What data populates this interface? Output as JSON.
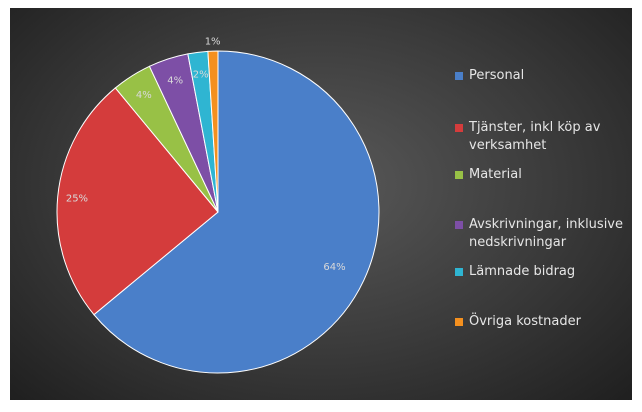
{
  "chart_data": {
    "type": "pie",
    "categories": [
      "Personal",
      "Tjänster, inkl köp av verksamhet",
      "Material",
      "Avskrivningar, inklusive nedskrivningar",
      "Lämnade bidrag",
      "Övriga kostnader"
    ],
    "values": [
      64,
      25,
      4,
      4,
      2,
      1
    ],
    "value_labels": [
      "64%",
      "25%",
      "4%",
      "4%",
      "2%",
      "1%"
    ],
    "colors": [
      "#4a7fc9",
      "#d43c3c",
      "#98c146",
      "#7d4fa6",
      "#2fb5d2",
      "#f4901f"
    ],
    "legend": "right"
  }
}
